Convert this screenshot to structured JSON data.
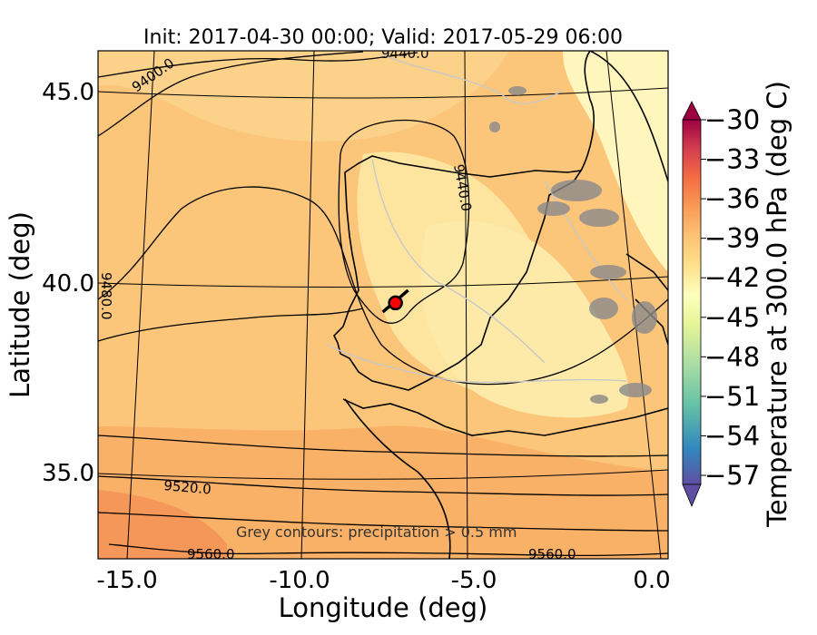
{
  "chart_data": {
    "type": "contour-map",
    "title": "Init: 2017-04-30 00:00; Valid: 2017-05-29 06:00",
    "xlabel": "Longitude (deg)",
    "ylabel": "Latitude (deg)",
    "xlim": [
      -16,
      0.1
    ],
    "ylim": [
      32.5,
      46
    ],
    "x_ticks": [
      "-15.0",
      "-10.0",
      "-5.0",
      "0.0"
    ],
    "y_ticks": [
      "35.0",
      "40.0",
      "45.0"
    ],
    "colorbar": {
      "label": "Temperature at 300.0 hPa (deg C)",
      "range": [
        -57,
        -30
      ],
      "ticks": [
        "−30",
        "−33",
        "−36",
        "−39",
        "−42",
        "−45",
        "−48",
        "−51",
        "−54",
        "−57"
      ],
      "colors": [
        "#8e0152",
        "#b2183b",
        "#d53e4f",
        "#f46d43",
        "#fba25b",
        "#fdd17f",
        "#fefebe",
        "#e6f598",
        "#abdda4",
        "#66c2a5",
        "#3288bd",
        "#5e4fa2"
      ]
    },
    "height_contours": [
      "9400.0",
      "9440.0",
      "9440.0",
      "9480.0",
      "9520.0",
      "9560.0",
      "9560.0"
    ],
    "note": "Grey contours: precipitation > 0.5 mm",
    "marker": {
      "lon": -7.6,
      "lat": 39.3,
      "color": "#ff0000"
    },
    "grid": true
  }
}
